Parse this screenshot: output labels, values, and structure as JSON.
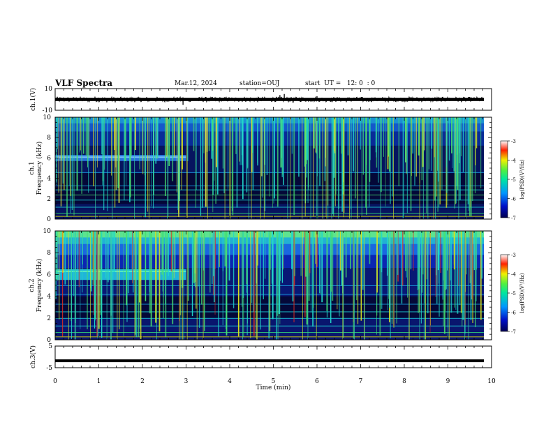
{
  "header": {
    "title": "VLF Spectra",
    "date": "Mar.12, 2024",
    "station": "station=OUJ",
    "start": "start  UT =   12: 0  : 0"
  },
  "colors": {
    "waveform": "#000000",
    "background_dark": "#050a3c"
  },
  "chart_data": [
    {
      "type": "line",
      "panel": "ch1-waveform",
      "ylabel": "ch.1(V)",
      "yticks": [
        "10",
        "-10"
      ],
      "ylim": [
        -10,
        10
      ],
      "xlim": [
        0,
        10
      ],
      "level": 0,
      "spikes": [
        {
          "x": 2.93,
          "y": -5
        },
        {
          "x": 5.15,
          "y": 4
        },
        {
          "x": 5.25,
          "y": 5
        },
        {
          "x": 5.45,
          "y": -3
        },
        {
          "x": 6.0,
          "y": 3
        }
      ]
    },
    {
      "type": "heatmap",
      "panel": "ch1-spectrogram",
      "ylabel": "ch.1\nFrequency (kHz)",
      "yticks": [
        "0",
        "2",
        "4",
        "6",
        "8",
        "10"
      ],
      "ylim": [
        0,
        10
      ],
      "xlim": [
        0,
        10
      ],
      "colorbar": {
        "label": "log(PSD)(V²/Hz)",
        "ticks": [
          "-3",
          "-4",
          "-5",
          "-6",
          "-7"
        ],
        "range": [
          -7,
          -3
        ]
      }
    },
    {
      "type": "heatmap",
      "panel": "ch2-spectrogram",
      "ylabel": "ch.2\nFrequency (kHz)",
      "yticks": [
        "0",
        "2",
        "4",
        "6",
        "8",
        "10"
      ],
      "ylim": [
        0,
        10
      ],
      "xlim": [
        0,
        10
      ],
      "colorbar": {
        "label": "log(PSD)(V²/Hz)",
        "ticks": [
          "-3",
          "-4",
          "-5",
          "-6",
          "-7"
        ],
        "range": [
          -7,
          -3
        ]
      }
    },
    {
      "type": "line",
      "panel": "ch3-waveform",
      "ylabel": "ch.3(V)",
      "yticks": [
        "5",
        "-5"
      ],
      "ylim": [
        -5,
        5
      ],
      "xlim": [
        0,
        10
      ],
      "level": -1.8
    }
  ],
  "xaxis": {
    "label": "Time (min)",
    "ticks": [
      "0",
      "1",
      "2",
      "3",
      "4",
      "5",
      "6",
      "7",
      "8",
      "9",
      "10"
    ]
  }
}
